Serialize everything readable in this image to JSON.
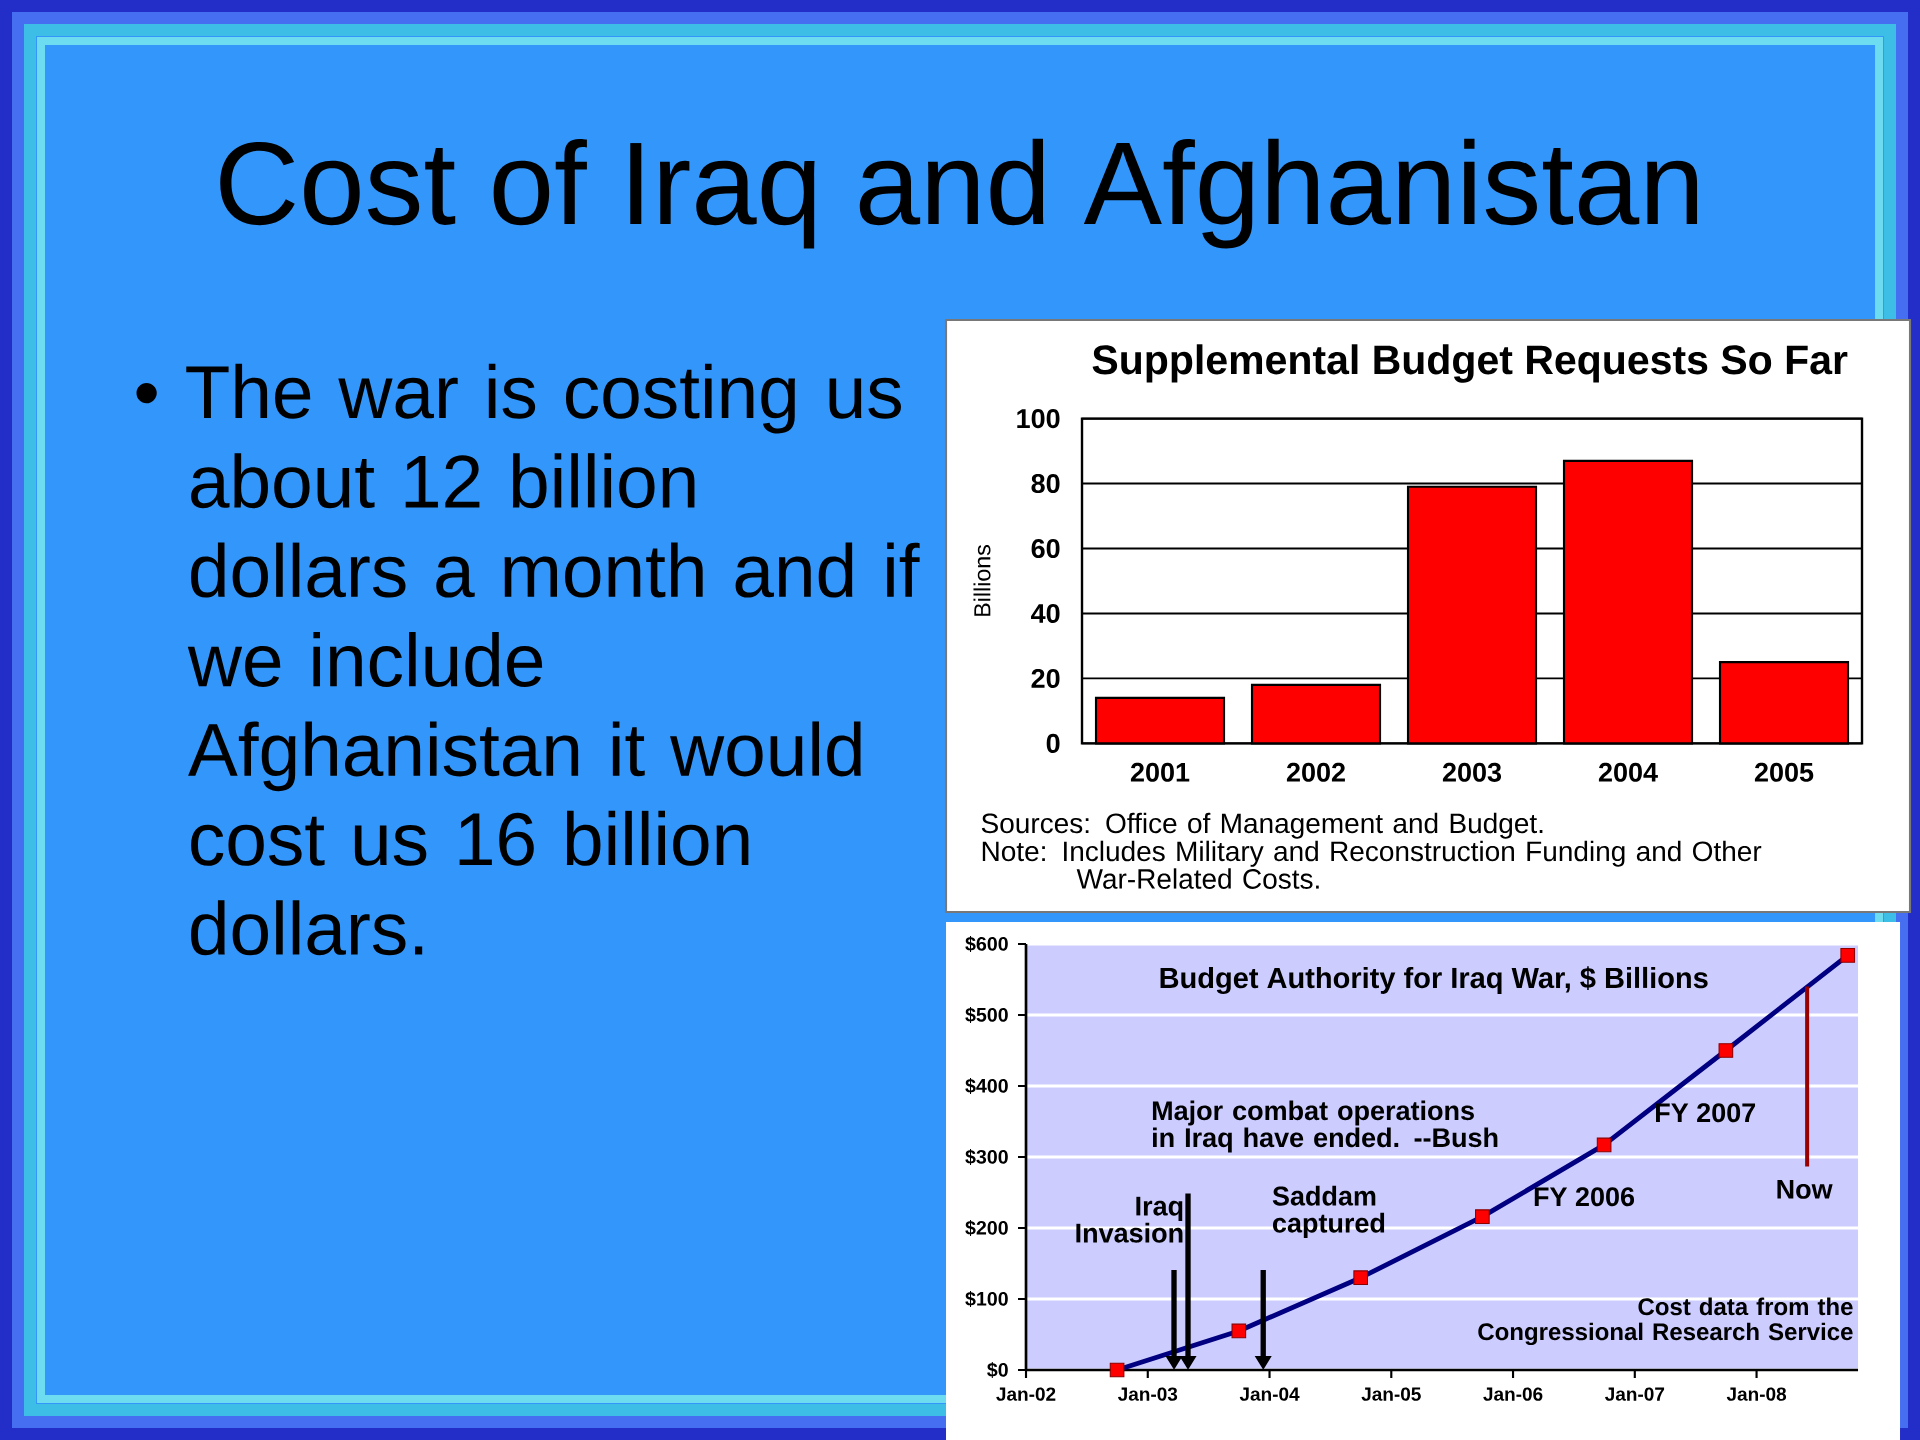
{
  "chart_data": [
    {
      "type": "other",
      "title": "Cost of Iraq and Afghanistan",
      "annotations": [
        "• The war is costing us\nabout 12 billion\ndollars a month and if\nwe include\nAfghanistan it would\ncost us 16 billion\ndollars."
      ]
    },
    {
      "type": "bar",
      "title": "Supplemental Budget Requests So Far",
      "ylabel": "Billions",
      "categories": [
        "2001",
        "2002",
        "2003",
        "2004",
        "2005"
      ],
      "values": [
        14,
        18,
        79,
        87,
        25
      ],
      "color": "#ff0000",
      "ylim": [
        0,
        100
      ],
      "yticks": [
        0,
        20,
        40,
        60,
        80,
        100
      ],
      "grid": "y",
      "annotations": [
        "Sources:  Office of Management and Budget.",
        "Note:  Includes Military and Reconstruction Funding and Other\nWar-Related Costs."
      ]
    },
    {
      "type": "line",
      "title": "Budget Authority for Iraq War, $ Billions",
      "x": [
        "2002-10",
        "2003-10",
        "2004-10",
        "2005-10",
        "2006-10",
        "2007-10",
        "2008-10"
      ],
      "values": [
        0,
        55,
        130,
        216,
        317,
        450,
        584
      ],
      "color": "#000080",
      "colors": [
        "#ff0000",
        "#ff0000",
        "#ff0000",
        "#ff0000",
        "#ff0000",
        "#ff0000",
        "#ff0000"
      ],
      "marker": "square",
      "xlim": [
        "2002-01",
        "2008-11"
      ],
      "xticks": [
        {
          "value": "2002-01",
          "label": "Jan-02"
        },
        {
          "value": "2003-01",
          "label": "Jan-03"
        },
        {
          "value": "2004-01",
          "label": "Jan-04"
        },
        {
          "value": "2005-01",
          "label": "Jan-05"
        },
        {
          "value": "2006-01",
          "label": "Jan-06"
        },
        {
          "value": "2007-01",
          "label": "Jan-07"
        },
        {
          "value": "2008-01",
          "label": "Jan-08"
        }
      ],
      "ylim": [
        0,
        600
      ],
      "yticks": [
        {
          "value": 0,
          "label": "$0"
        },
        {
          "value": 100,
          "label": "$100"
        },
        {
          "value": 200,
          "label": "$200"
        },
        {
          "value": 300,
          "label": "$300"
        },
        {
          "value": 400,
          "label": "$400"
        },
        {
          "value": 500,
          "label": "$500"
        },
        {
          "value": 600,
          "label": "$600"
        }
      ],
      "grid": "y",
      "annotations": [
        "Major combat operations\nin Iraq have ended. --Bush",
        "Iraq\nInvasion",
        "Saddam\ncaptured",
        "FY 2006",
        "FY 2007",
        {
          "text": "Now",
          "x": "2008-06",
          "y": 540
        },
        "Cost data from the\nCongressional Research Service"
      ]
    }
  ]
}
